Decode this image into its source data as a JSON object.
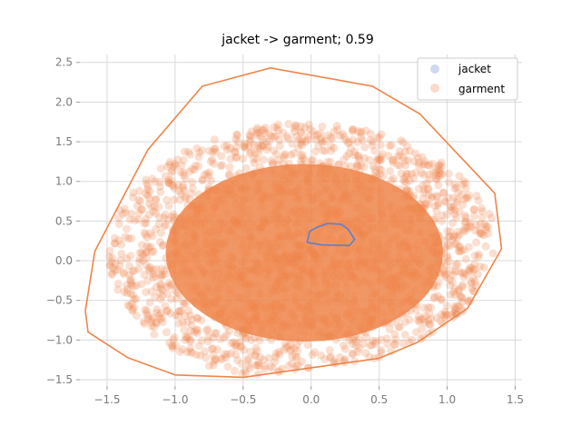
{
  "chart_data": {
    "type": "scatter",
    "title": "jacket -> garment; 0.59",
    "xlabel": "",
    "ylabel": "",
    "xlim": [
      -1.7,
      1.55
    ],
    "ylim": [
      -1.58,
      2.6
    ],
    "x_ticks": [
      -1.5,
      -1.0,
      -0.5,
      0.0,
      0.5,
      1.0,
      1.5
    ],
    "x_tick_labels": [
      "−1.5",
      "−1.0",
      "−0.5",
      "0.0",
      "0.5",
      "1.0",
      "1.5"
    ],
    "y_ticks": [
      -1.5,
      -1.0,
      -0.5,
      0.0,
      0.5,
      1.0,
      1.5,
      2.0,
      2.5
    ],
    "y_tick_labels": [
      "−1.5",
      "−1.0",
      "−0.5",
      "0.0",
      "0.5",
      "1.0",
      "1.5",
      "2.0",
      "2.5"
    ],
    "grid": true,
    "legend_position": "top-right",
    "series": [
      {
        "name": "jacket",
        "color": "#5a7fcf",
        "marker_alpha": 0.3,
        "hull": [
          [
            -0.03,
            0.23
          ],
          [
            -0.01,
            0.37
          ],
          [
            0.04,
            0.42
          ],
          [
            0.12,
            0.47
          ],
          [
            0.22,
            0.46
          ],
          [
            0.27,
            0.4
          ],
          [
            0.32,
            0.27
          ],
          [
            0.28,
            0.19
          ],
          [
            0.08,
            0.2
          ],
          [
            -0.03,
            0.23
          ]
        ]
      },
      {
        "name": "garment",
        "color": "#ee854a",
        "marker_alpha": 0.25,
        "hull": [
          [
            -1.66,
            -0.63
          ],
          [
            -1.59,
            0.12
          ],
          [
            -1.2,
            1.4
          ],
          [
            -0.8,
            2.2
          ],
          [
            -0.3,
            2.43
          ],
          [
            0.45,
            2.2
          ],
          [
            0.8,
            1.85
          ],
          [
            1.35,
            0.85
          ],
          [
            1.4,
            0.15
          ],
          [
            1.15,
            -0.6
          ],
          [
            0.78,
            -1.03
          ],
          [
            0.5,
            -1.23
          ],
          [
            0.0,
            -1.35
          ],
          [
            -0.5,
            -1.47
          ],
          [
            -1.0,
            -1.44
          ],
          [
            -1.35,
            -1.22
          ],
          [
            -1.64,
            -0.9
          ],
          [
            -1.66,
            -0.63
          ]
        ],
        "density_core": {
          "description_center": [
            -0.05,
            0.1
          ],
          "x_radius": 1.25,
          "y_radius": 1.42,
          "point_count": 2200
        }
      }
    ]
  }
}
